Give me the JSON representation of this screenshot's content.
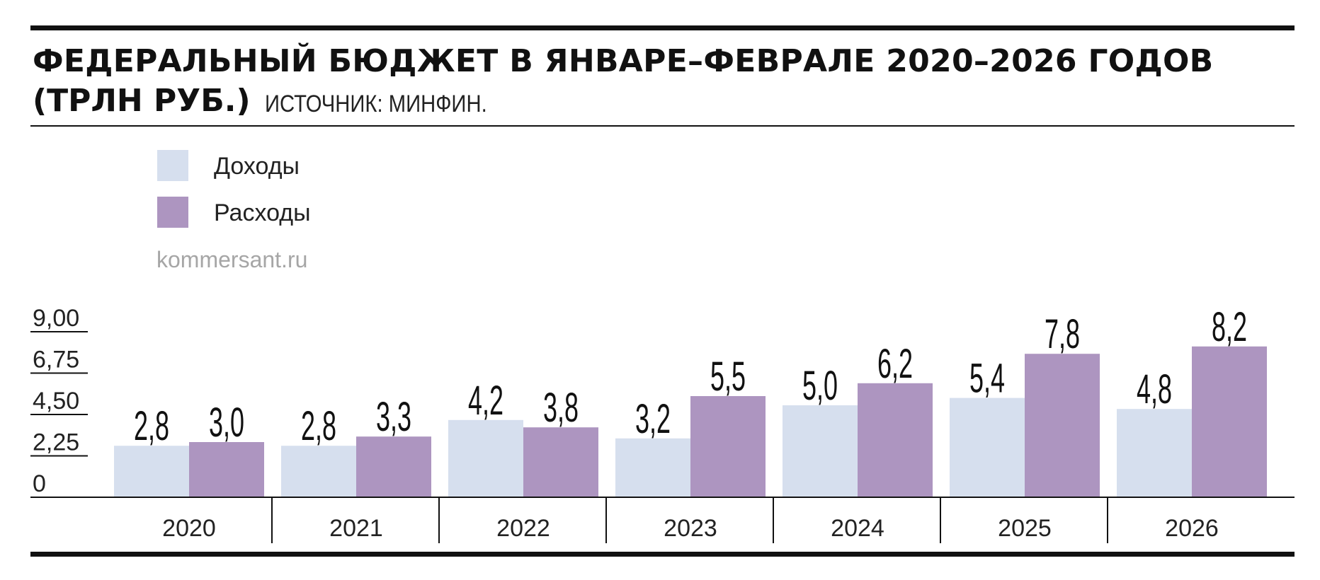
{
  "header": {
    "title_line1": "ФЕДЕРАЛЬНЫЙ БЮДЖЕТ В ЯНВАРЕ–ФЕВРАЛЕ 2020–2026 ГОДОВ",
    "title_line2": "(ТРЛН РУБ.)",
    "source": "ИСТОЧНИК: МИНФИН."
  },
  "watermark": "kommersant.ru",
  "colors": {
    "income": "#d6dfee",
    "expense": "#ad95c0",
    "rules": "#111111"
  },
  "chart_data": {
    "type": "bar",
    "title": "ФЕДЕРАЛЬНЫЙ БЮДЖЕТ В ЯНВАРЕ–ФЕВРАЛЕ 2020–2026 ГОДОВ (ТРЛН РУБ.)",
    "categories": [
      "2020",
      "2021",
      "2022",
      "2023",
      "2024",
      "2025",
      "2026"
    ],
    "series": [
      {
        "name": "Доходы",
        "values": [
          2.8,
          2.8,
          4.2,
          3.2,
          5.0,
          5.4,
          4.8
        ],
        "labels": [
          "2,8",
          "2,8",
          "4,2",
          "3,2",
          "5,0",
          "5,4",
          "4,8"
        ]
      },
      {
        "name": "Расходы",
        "values": [
          3.0,
          3.3,
          3.8,
          5.5,
          6.2,
          7.8,
          8.2
        ],
        "labels": [
          "3,0",
          "3,3",
          "3,8",
          "5,5",
          "6,2",
          "7,8",
          "8,2"
        ]
      }
    ],
    "yticks": [
      0,
      2.25,
      4.5,
      6.75,
      9
    ],
    "ytick_labels": [
      "0",
      "2,25",
      "4,50",
      "6,75",
      "9,00"
    ],
    "ylim": [
      0,
      9.9
    ],
    "legend_position": "top-left",
    "grid": false
  }
}
